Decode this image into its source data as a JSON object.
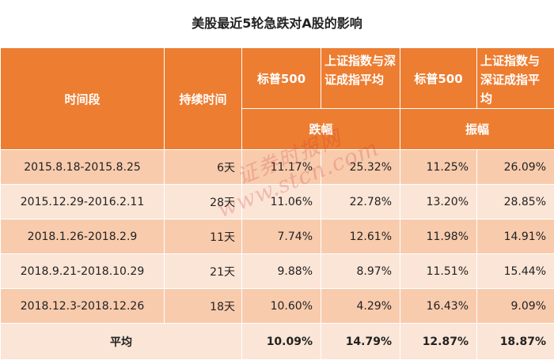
{
  "title": "美股最近5轮急跌对A股的影响",
  "table": {
    "headers": {
      "period": "时间段",
      "duration": "持续时间",
      "sp500_a": "标普500",
      "ashare_a": "上证指数与深证成指平均",
      "sp500_b": "标普500",
      "ashare_b": "上证指数与深证成指平均",
      "group_drop": "跌幅",
      "group_amplitude": "振幅"
    },
    "rows": [
      {
        "period": "2015.8.18-2015.8.25",
        "duration": "6天",
        "sp_drop": "11.17%",
        "a_drop": "25.32%",
        "sp_amp": "11.25%",
        "a_amp": "26.09%"
      },
      {
        "period": "2015.12.29-2016.2.11",
        "duration": "28天",
        "sp_drop": "11.06%",
        "a_drop": "22.78%",
        "sp_amp": "13.20%",
        "a_amp": "28.85%"
      },
      {
        "period": "2018.1.26-2018.2.9",
        "duration": "11天",
        "sp_drop": "7.74%",
        "a_drop": "12.61%",
        "sp_amp": "11.98%",
        "a_amp": "14.91%"
      },
      {
        "period": "2018.9.21-2018.10.29",
        "duration": "21天",
        "sp_drop": "9.88%",
        "a_drop": "8.97%",
        "sp_amp": "11.51%",
        "a_amp": "15.44%"
      },
      {
        "period": "2018.12.3-2018.12.26",
        "duration": "18天",
        "sp_drop": "10.60%",
        "a_drop": "4.29%",
        "sp_amp": "16.43%",
        "a_amp": "9.09%"
      }
    ],
    "average": {
      "label": "平均",
      "sp_drop": "10.09%",
      "a_drop": "14.79%",
      "sp_amp": "12.87%",
      "a_amp": "18.87%"
    }
  },
  "watermark": {
    "cn": "证券时报网",
    "url": "www.stcn.com"
  },
  "colors": {
    "header": "#ed7d31",
    "row_dark": "#f8cbad",
    "row_light": "#fbe5d6"
  }
}
